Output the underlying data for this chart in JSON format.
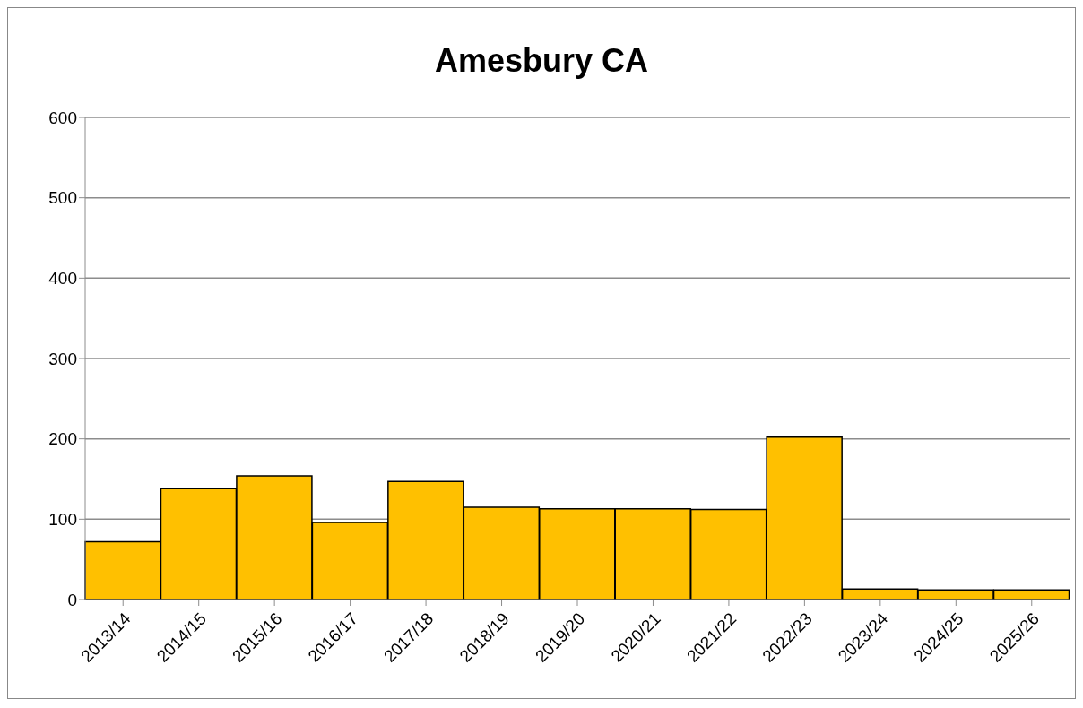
{
  "chart_data": {
    "type": "bar",
    "title": "Amesbury CA",
    "categories": [
      "2013/14",
      "2014/15",
      "2015/16",
      "2016/17",
      "2017/18",
      "2018/19",
      "2019/20",
      "2020/21",
      "2021/22",
      "2022/23",
      "2023/24",
      "2024/25",
      "2025/26"
    ],
    "values": [
      72,
      138,
      154,
      96,
      147,
      115,
      113,
      113,
      112,
      202,
      13,
      12,
      12
    ],
    "color": "#ffc000",
    "ylim": [
      0,
      600
    ],
    "yticks": [
      0,
      100,
      200,
      300,
      400,
      500,
      600
    ],
    "grid": "y"
  }
}
